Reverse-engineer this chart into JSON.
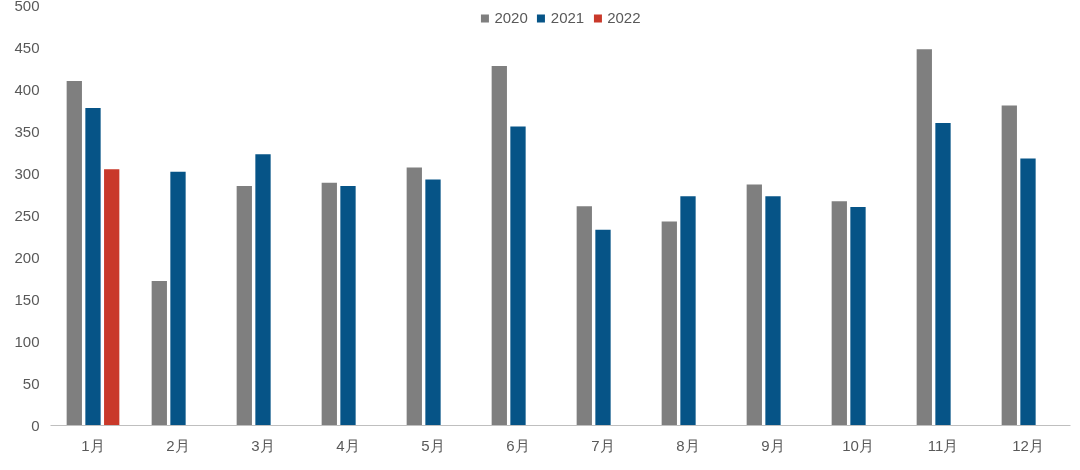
{
  "chart_data": {
    "type": "bar",
    "categories": [
      "1月",
      "2月",
      "3月",
      "4月",
      "5月",
      "6月",
      "7月",
      "8月",
      "9月",
      "10月",
      "11月",
      "12月"
    ],
    "series": [
      {
        "name": "2020",
        "color": "#7f7f7f",
        "values": [
          410,
          172,
          285,
          289,
          307,
          428,
          261,
          243,
          287,
          267,
          448,
          381
        ]
      },
      {
        "name": "2021",
        "color": "#065487",
        "values": [
          378,
          302,
          323,
          285,
          293,
          356,
          233,
          273,
          273,
          260,
          360,
          318
        ]
      },
      {
        "name": "2022",
        "color": "#c9392a",
        "values": [
          305,
          null,
          null,
          null,
          null,
          null,
          null,
          null,
          null,
          null,
          null,
          null
        ]
      }
    ],
    "ylim": [
      0,
      500
    ],
    "yticks": [
      0,
      50,
      100,
      150,
      200,
      250,
      300,
      350,
      400,
      450,
      500
    ],
    "grid": false,
    "legend": "top"
  }
}
